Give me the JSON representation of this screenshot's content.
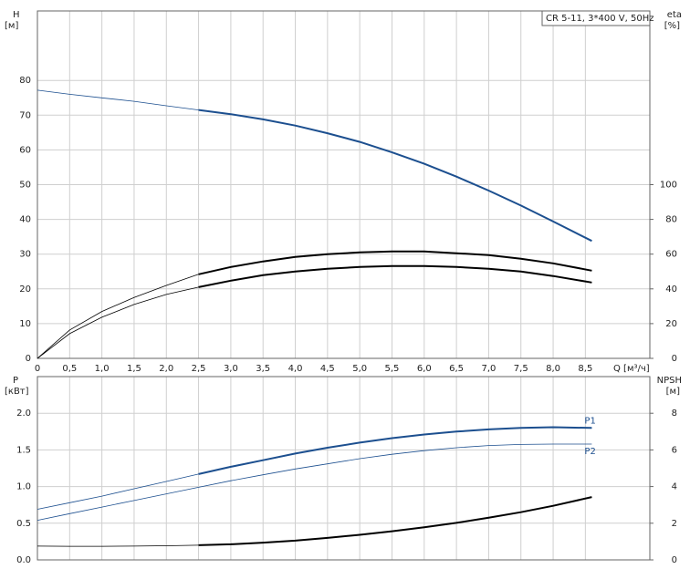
{
  "chart_data": [
    {
      "type": "line",
      "title": "CR 5-11, 3*400 V, 50Hz",
      "ylabel": "H",
      "yunit": "[м]",
      "y2label": "eta",
      "y2unit": "[%]",
      "xlabel": "Q [м³/ч]",
      "xlim": [
        0,
        9.5
      ],
      "xticks": [
        0,
        {
          "value": 0.5,
          "label": "0,5"
        },
        {
          "value": 1,
          "label": "1,0"
        },
        {
          "value": 1.5,
          "label": "1,5"
        },
        {
          "value": 2,
          "label": "2,0"
        },
        {
          "value": 2.5,
          "label": "2,5"
        },
        {
          "value": 3,
          "label": "3,0"
        },
        {
          "value": 3.5,
          "label": "3,5"
        },
        {
          "value": 4,
          "label": "4,0"
        },
        {
          "value": 4.5,
          "label": "4,5"
        },
        {
          "value": 5,
          "label": "5,0"
        },
        {
          "value": 5.5,
          "label": "5,5"
        },
        {
          "value": 6,
          "label": "6,0"
        },
        {
          "value": 6.5,
          "label": "6,5"
        },
        {
          "value": 7,
          "label": "7,0"
        },
        {
          "value": 7.5,
          "label": "7,5"
        },
        {
          "value": 8,
          "label": "8,0"
        },
        {
          "value": 8.5,
          "label": "8,5"
        }
      ],
      "xtick_labels": true,
      "ylim": [
        0,
        100
      ],
      "yticks": [
        0,
        10,
        20,
        30,
        40,
        50,
        60,
        70,
        80
      ],
      "y2lim": [
        0,
        200
      ],
      "y2ticks": [
        0,
        20,
        40,
        60,
        80,
        100
      ],
      "bold_from": 2.5,
      "x": [
        0,
        0.5,
        1,
        1.5,
        2,
        2.5,
        3,
        3.5,
        4,
        4.5,
        5,
        5.5,
        6,
        6.5,
        7,
        7.5,
        8,
        8.6
      ],
      "series": [
        {
          "color": "#1c4f8f",
          "axis": "y",
          "bold": true,
          "values": [
            77.2,
            76,
            75,
            74,
            72.7,
            71.5,
            70.3,
            68.8,
            67,
            64.8,
            62.3,
            59.3,
            56,
            52.3,
            48.3,
            44,
            39.4,
            33.8
          ]
        },
        {
          "color": "#000000",
          "axis": "y2",
          "bold": true,
          "values": [
            0,
            16.3,
            27,
            35,
            42,
            48.4,
            52.6,
            55.8,
            58.4,
            60,
            61,
            61.6,
            61.6,
            60.5,
            59.5,
            57.4,
            54.7,
            50.5
          ]
        },
        {
          "color": "#000000",
          "axis": "y2",
          "bold": true,
          "values": [
            0,
            14.2,
            23.7,
            31,
            36.8,
            41,
            44.7,
            47.9,
            50,
            51.6,
            52.6,
            53.2,
            53.2,
            52.6,
            51.6,
            50,
            47.4,
            43.7
          ]
        }
      ]
    },
    {
      "type": "line",
      "ylabel": "P",
      "yunit": "[кВт]",
      "y2label": "NPSH",
      "y2unit": "[м]",
      "xlim": [
        0,
        9.5
      ],
      "xticks": [
        0,
        0.5,
        1,
        1.5,
        2,
        2.5,
        3,
        3.5,
        4,
        4.5,
        5,
        5.5,
        6,
        6.5,
        7,
        7.5,
        8,
        8.5
      ],
      "xtick_labels": false,
      "ylim": [
        0,
        2.5
      ],
      "yticks": [
        {
          "value": 0,
          "label": "0.0"
        },
        0.5,
        {
          "value": 1,
          "label": "1.0"
        },
        1.5,
        {
          "value": 2,
          "label": "2.0"
        }
      ],
      "y2lim": [
        0,
        10
      ],
      "y2ticks": [
        0,
        2,
        4,
        6,
        8
      ],
      "bold_from": 2.5,
      "x": [
        0,
        0.5,
        1,
        1.5,
        2,
        2.5,
        3,
        3.5,
        4,
        4.5,
        5,
        5.5,
        6,
        6.5,
        7,
        7.5,
        8,
        8.6
      ],
      "series": [
        {
          "name": "P1",
          "color": "#1c4f8f",
          "axis": "y",
          "bold": true,
          "values": [
            0.69,
            0.78,
            0.87,
            0.97,
            1.07,
            1.17,
            1.27,
            1.36,
            1.45,
            1.53,
            1.6,
            1.66,
            1.71,
            1.75,
            1.78,
            1.8,
            1.81,
            1.8
          ]
        },
        {
          "name": "P2",
          "color": "#1c4f8f",
          "axis": "y",
          "bold": false,
          "values": [
            0.54,
            0.63,
            0.72,
            0.81,
            0.9,
            0.99,
            1.08,
            1.16,
            1.24,
            1.31,
            1.38,
            1.44,
            1.49,
            1.53,
            1.56,
            1.575,
            1.58,
            1.58
          ]
        },
        {
          "color": "#000000",
          "axis": "y2",
          "bold": true,
          "values": [
            0.75,
            0.74,
            0.74,
            0.75,
            0.77,
            0.8,
            0.85,
            0.94,
            1.05,
            1.2,
            1.37,
            1.56,
            1.78,
            2.02,
            2.3,
            2.6,
            2.95,
            3.43
          ]
        }
      ]
    }
  ]
}
